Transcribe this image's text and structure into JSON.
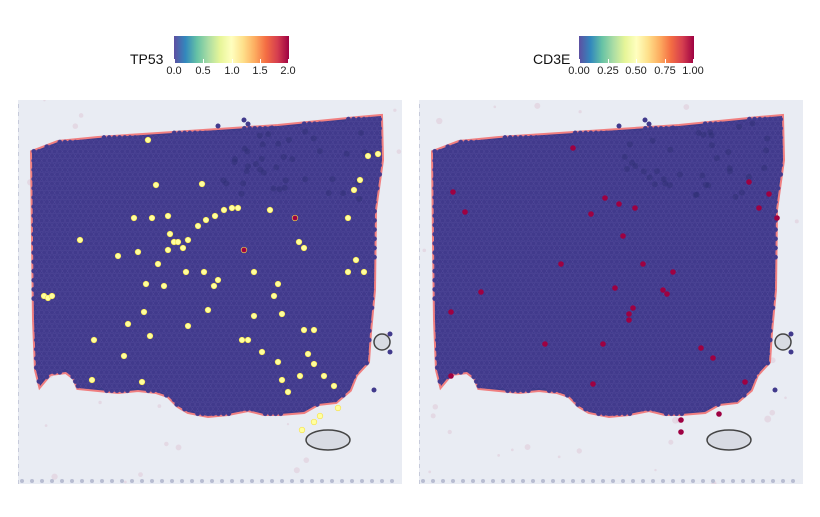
{
  "panels": [
    {
      "gene": "TP53",
      "legend": {
        "ticks": [
          "0.0",
          "0.5",
          "1.0",
          "1.5",
          "2.0"
        ]
      },
      "highlight_colors": [
        "#ffff9e",
        "#9e0142"
      ]
    },
    {
      "gene": "CD3E",
      "legend": {
        "ticks": [
          "0.00",
          "0.25",
          "0.50",
          "0.75",
          "1.00"
        ]
      },
      "highlight_colors": [
        "#9e0142"
      ]
    }
  ],
  "colors": {
    "spot_low": "#413a8c",
    "spot_edge": "#c0392b",
    "tissue_pink": "#e8cfd8",
    "background_tint": "#e9ecf3",
    "colorscale": [
      "#5e4fa2",
      "#3288bd",
      "#66c2a5",
      "#abdda4",
      "#e6f598",
      "#ffffbf",
      "#fee08b",
      "#fdae61",
      "#f46d43",
      "#d53e4f",
      "#9e0142"
    ]
  }
}
